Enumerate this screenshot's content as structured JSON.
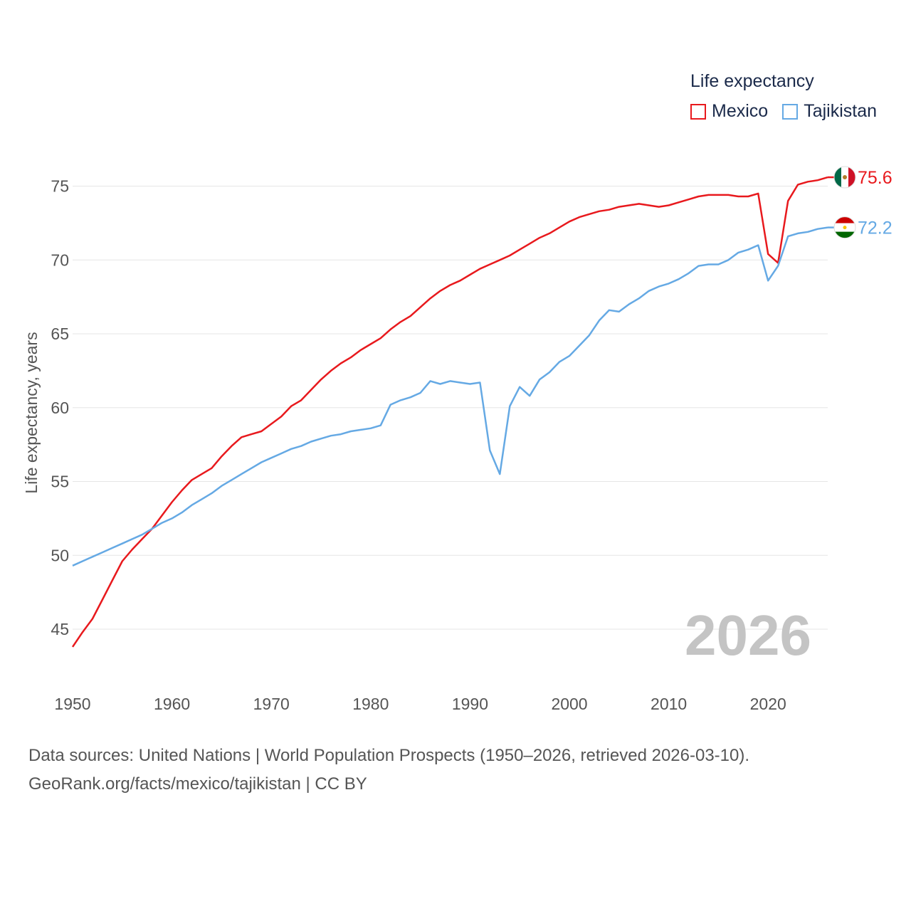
{
  "legend": {
    "title": "Life expectancy",
    "items": [
      {
        "label": "Mexico",
        "color": "#e8191d"
      },
      {
        "label": "Tajikistan",
        "color": "#65a9e4"
      }
    ]
  },
  "year_watermark": "2026",
  "footer": {
    "line1": "Data sources: United Nations | World Population Prospects (1950–2026, retrieved 2026-03-10).",
    "line2": "GeoRank.org/facts/mexico/tajikistan | CC BY"
  },
  "chart_data": {
    "type": "line",
    "title": "Life expectancy",
    "xlabel": "",
    "ylabel": "Life expectancy, years",
    "xlim": [
      1950,
      2026
    ],
    "ylim": [
      42.5,
      77
    ],
    "x_ticks": [
      1950,
      1960,
      1970,
      1980,
      1990,
      2000,
      2010,
      2020
    ],
    "y_ticks": [
      45,
      50,
      55,
      60,
      65,
      70,
      75
    ],
    "grid": true,
    "series": [
      {
        "name": "Mexico",
        "color": "#e8191d",
        "end_label": "75.6",
        "flag": "mexico-flag-icon",
        "x": [
          1950,
          1951,
          1952,
          1953,
          1954,
          1955,
          1956,
          1957,
          1958,
          1959,
          1960,
          1961,
          1962,
          1963,
          1964,
          1965,
          1966,
          1967,
          1968,
          1969,
          1970,
          1971,
          1972,
          1973,
          1974,
          1975,
          1976,
          1977,
          1978,
          1979,
          1980,
          1981,
          1982,
          1983,
          1984,
          1985,
          1986,
          1987,
          1988,
          1989,
          1990,
          1991,
          1992,
          1993,
          1994,
          1995,
          1996,
          1997,
          1998,
          1999,
          2000,
          2001,
          2002,
          2003,
          2004,
          2005,
          2006,
          2007,
          2008,
          2009,
          2010,
          2011,
          2012,
          2013,
          2014,
          2015,
          2016,
          2017,
          2018,
          2019,
          2020,
          2021,
          2022,
          2023,
          2024,
          2025,
          2026
        ],
        "y": [
          43.8,
          44.8,
          45.7,
          47.0,
          48.3,
          49.6,
          50.4,
          51.1,
          51.8,
          52.7,
          53.6,
          54.4,
          55.1,
          55.5,
          55.9,
          56.7,
          57.4,
          58.0,
          58.2,
          58.4,
          58.9,
          59.4,
          60.1,
          60.5,
          61.2,
          61.9,
          62.5,
          63.0,
          63.4,
          63.9,
          64.3,
          64.7,
          65.3,
          65.8,
          66.2,
          66.8,
          67.4,
          67.9,
          68.3,
          68.6,
          69.0,
          69.4,
          69.7,
          70.0,
          70.3,
          70.7,
          71.1,
          71.5,
          71.8,
          72.2,
          72.6,
          72.9,
          73.1,
          73.3,
          73.4,
          73.6,
          73.7,
          73.8,
          73.7,
          73.6,
          73.7,
          73.9,
          74.1,
          74.3,
          74.4,
          74.4,
          74.4,
          74.3,
          74.3,
          74.5,
          70.4,
          69.8,
          74.0,
          75.1,
          75.3,
          75.4,
          75.6
        ]
      },
      {
        "name": "Tajikistan",
        "color": "#65a9e4",
        "end_label": "72.2",
        "flag": "tajikistan-flag-icon",
        "x": [
          1950,
          1951,
          1952,
          1953,
          1954,
          1955,
          1956,
          1957,
          1958,
          1959,
          1960,
          1961,
          1962,
          1963,
          1964,
          1965,
          1966,
          1967,
          1968,
          1969,
          1970,
          1971,
          1972,
          1973,
          1974,
          1975,
          1976,
          1977,
          1978,
          1979,
          1980,
          1981,
          1982,
          1983,
          1984,
          1985,
          1986,
          1987,
          1988,
          1989,
          1990,
          1991,
          1992,
          1993,
          1994,
          1995,
          1996,
          1997,
          1998,
          1999,
          2000,
          2001,
          2002,
          2003,
          2004,
          2005,
          2006,
          2007,
          2008,
          2009,
          2010,
          2011,
          2012,
          2013,
          2014,
          2015,
          2016,
          2017,
          2018,
          2019,
          2020,
          2021,
          2022,
          2023,
          2024,
          2025,
          2026
        ],
        "y": [
          49.3,
          49.6,
          49.9,
          50.2,
          50.5,
          50.8,
          51.1,
          51.4,
          51.8,
          52.2,
          52.5,
          52.9,
          53.4,
          53.8,
          54.2,
          54.7,
          55.1,
          55.5,
          55.9,
          56.3,
          56.6,
          56.9,
          57.2,
          57.4,
          57.7,
          57.9,
          58.1,
          58.2,
          58.4,
          58.5,
          58.6,
          58.8,
          60.2,
          60.5,
          60.7,
          61.0,
          61.8,
          61.6,
          61.8,
          61.7,
          61.6,
          61.7,
          57.1,
          55.5,
          60.1,
          61.4,
          60.8,
          61.9,
          62.4,
          63.1,
          63.5,
          64.2,
          64.9,
          65.9,
          66.6,
          66.5,
          67.0,
          67.4,
          67.9,
          68.2,
          68.4,
          68.7,
          69.1,
          69.6,
          69.7,
          69.7,
          70.0,
          70.5,
          70.7,
          71.0,
          68.6,
          69.6,
          71.6,
          71.8,
          71.9,
          72.1,
          72.2
        ]
      }
    ]
  }
}
